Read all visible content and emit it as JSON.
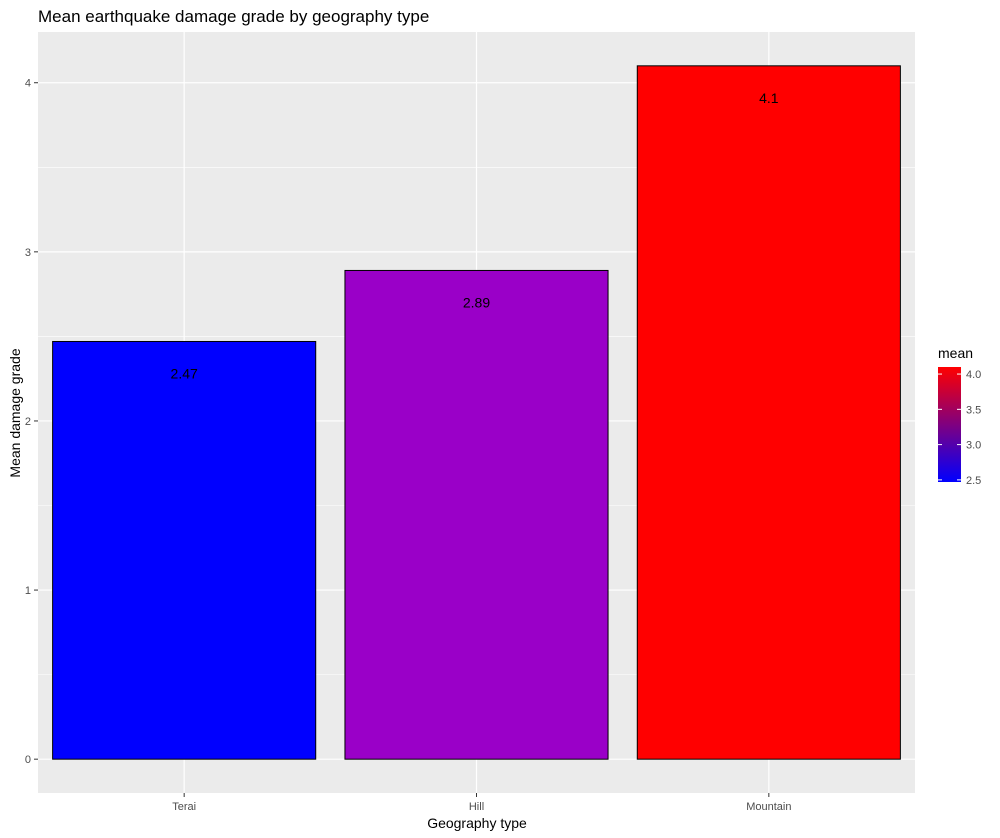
{
  "chart_data": {
    "type": "bar",
    "title": "Mean earthquake damage grade by geography type",
    "xlabel": "Geography type",
    "ylabel": "Mean damage grade",
    "categories": [
      "Terai",
      "Hill",
      "Mountain"
    ],
    "values": [
      2.47,
      2.89,
      4.1
    ],
    "data_labels": [
      "2.47",
      "2.89",
      "4.1"
    ],
    "ylim": [
      -0.2,
      4.3
    ],
    "yticks": [
      0,
      1,
      2,
      3,
      4
    ],
    "ytick_labels": [
      "0",
      "1",
      "2",
      "3",
      "4"
    ],
    "grid": true,
    "legend": {
      "title": "mean",
      "position": "right",
      "type": "colorbar",
      "range": [
        2.47,
        4.1
      ],
      "ticks": [
        2.5,
        3.0,
        3.5,
        4.0
      ],
      "tick_labels": [
        "2.5",
        "3.0",
        "3.5",
        "4.0"
      ],
      "low_color": "#0000FF",
      "high_color": "#FF0000"
    },
    "colors": {
      "panel_background": "#EBEBEB",
      "grid": "#FFFFFF",
      "bar_outline": "#000000"
    }
  }
}
